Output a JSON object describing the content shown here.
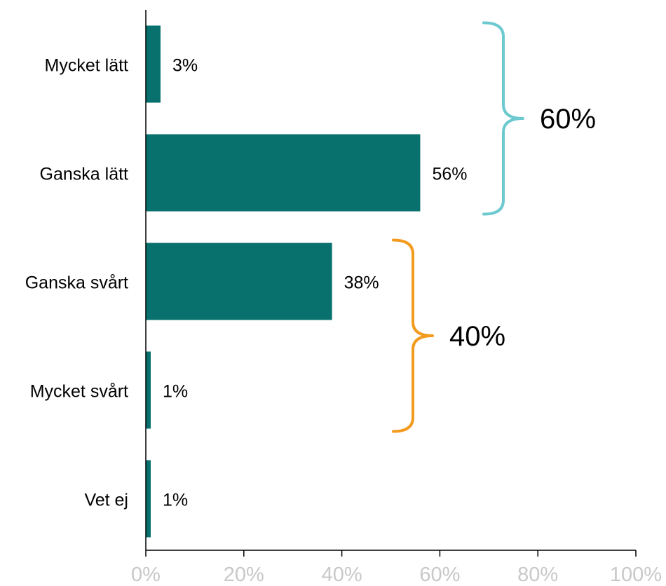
{
  "chart_data": {
    "type": "bar",
    "orientation": "horizontal",
    "categories": [
      "Mycket lätt",
      "Ganska lätt",
      "Ganska svårt",
      "Mycket svårt",
      "Vet ej"
    ],
    "values": [
      3,
      56,
      38,
      1,
      1
    ],
    "value_labels": [
      "3%",
      "56%",
      "38%",
      "1%",
      "1%"
    ],
    "xlim": [
      0,
      100
    ],
    "x_ticks": [
      0,
      20,
      40,
      60,
      80,
      100
    ],
    "x_tick_labels": [
      "0%",
      "20%",
      "40%",
      "60%",
      "80%",
      "100%"
    ],
    "title": "",
    "xlabel": "",
    "ylabel": "",
    "grid": false,
    "legend": "none",
    "brackets": [
      {
        "label": "60%",
        "from_category": 0,
        "to_category": 1,
        "color": "#6cc9d0"
      },
      {
        "label": "40%",
        "from_category": 2,
        "to_category": 3,
        "color": "#f39b1e"
      }
    ]
  },
  "colors": {
    "bar": "#08716d",
    "axis": "#000000",
    "tick_label": "#c8c8c8",
    "text": "#000000"
  }
}
